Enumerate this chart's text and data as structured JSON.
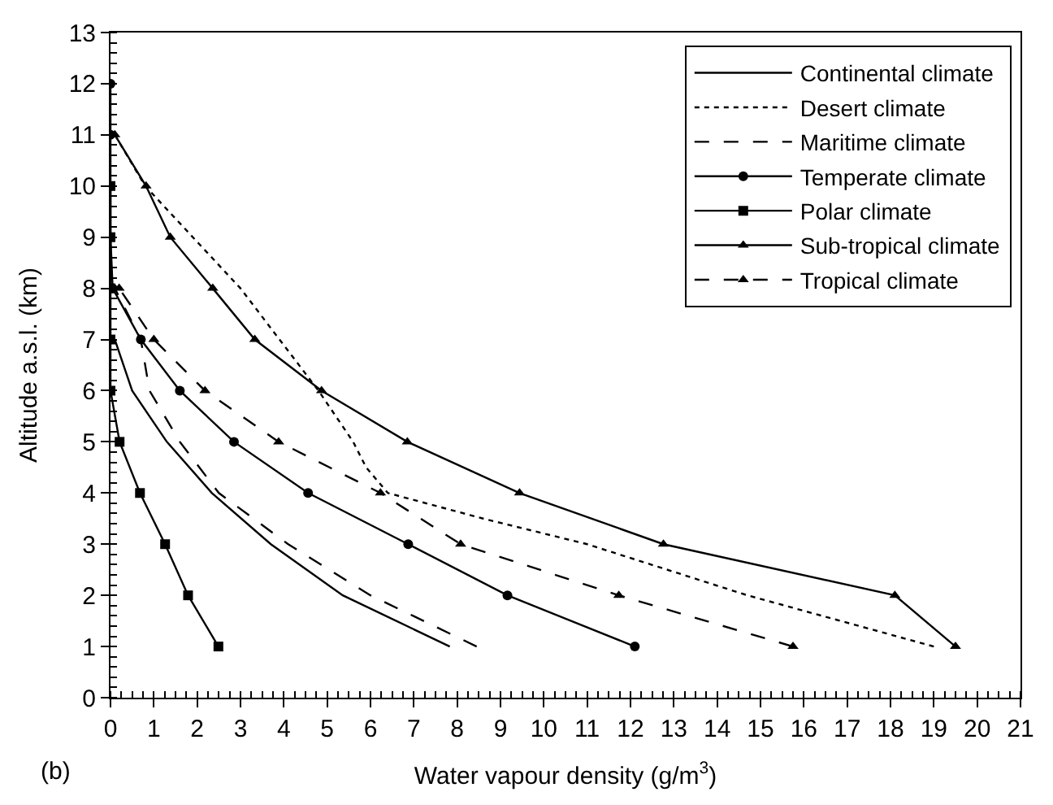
{
  "chart_data": {
    "type": "line",
    "xlabel": "Water vapour density (g/m$^{3}$)",
    "ylabel": "Altitude a.s.l. (km)",
    "annotations": [
      "(b)"
    ],
    "xlim": [
      0,
      21
    ],
    "xticks": [
      0,
      1,
      2,
      3,
      4,
      5,
      6,
      7,
      8,
      9,
      10,
      11,
      12,
      13,
      14,
      15,
      16,
      17,
      18,
      19,
      20,
      21
    ],
    "ylim": [
      0,
      13
    ],
    "yticks": [
      0,
      1,
      2,
      3,
      4,
      5,
      6,
      7,
      8,
      9,
      10,
      11,
      12,
      13
    ],
    "legend": "top right",
    "series": [
      {
        "name": "Continental climate",
        "color": "#000000",
        "line_style": "solid",
        "marker": "none",
        "x": [
          7.83,
          5.36,
          3.7,
          2.34,
          1.3,
          0.5,
          0.1
        ],
        "values": [
          1,
          2,
          3,
          4,
          5,
          6,
          7
        ]
      },
      {
        "name": "Desert climate",
        "color": "#000000",
        "line_style": "dotted",
        "marker": "none",
        "x": [
          19.0,
          14.7,
          11.0,
          8.6,
          6.4,
          5.9,
          5.6,
          4.8,
          3.9,
          3.0,
          1.9,
          0.8,
          0.1
        ],
        "values": [
          1,
          2,
          3,
          3.5,
          4,
          4.5,
          5,
          6,
          7,
          8,
          9,
          10,
          11
        ]
      },
      {
        "name": "Maritime climate",
        "color": "#000000",
        "line_style": "dashed",
        "marker": "none",
        "x": [
          8.45,
          6.0,
          4.1,
          2.5,
          1.6,
          0.9,
          0.7,
          0.1
        ],
        "values": [
          1,
          2,
          3,
          4,
          5,
          6,
          7,
          8
        ]
      },
      {
        "name": "Temperate climate",
        "color": "#000000",
        "line_style": "solid",
        "marker": "circle",
        "x": [
          12.1,
          9.16,
          6.87,
          4.56,
          2.85,
          1.6,
          0.7,
          0.05,
          0,
          0,
          0,
          0
        ],
        "values": [
          1,
          2,
          3,
          4,
          5,
          6,
          7,
          8,
          9,
          10,
          11,
          12
        ]
      },
      {
        "name": "Polar climate",
        "color": "#000000",
        "line_style": "solid",
        "marker": "square",
        "x": [
          2.49,
          1.79,
          1.26,
          0.68,
          0.21,
          0,
          0,
          0,
          0,
          0
        ],
        "values": [
          1,
          2,
          3,
          4,
          5,
          6,
          7,
          8,
          9,
          10
        ]
      },
      {
        "name": "Sub-tropical climate",
        "color": "#000000",
        "line_style": "solid",
        "marker": "triangle",
        "x": [
          19.5,
          18.1,
          12.76,
          9.44,
          6.85,
          4.87,
          3.33,
          2.36,
          1.38,
          0.82,
          0.1
        ],
        "values": [
          1,
          2,
          3,
          4,
          5,
          6,
          7,
          8,
          9,
          10,
          11
        ]
      },
      {
        "name": "Tropical climate",
        "color": "#000000",
        "line_style": "dashed",
        "marker": "triangle",
        "x": [
          15.75,
          11.73,
          8.08,
          6.23,
          3.88,
          2.18,
          1.0,
          0.2
        ],
        "values": [
          1,
          2,
          3,
          4,
          5,
          6,
          7,
          8
        ]
      }
    ]
  }
}
